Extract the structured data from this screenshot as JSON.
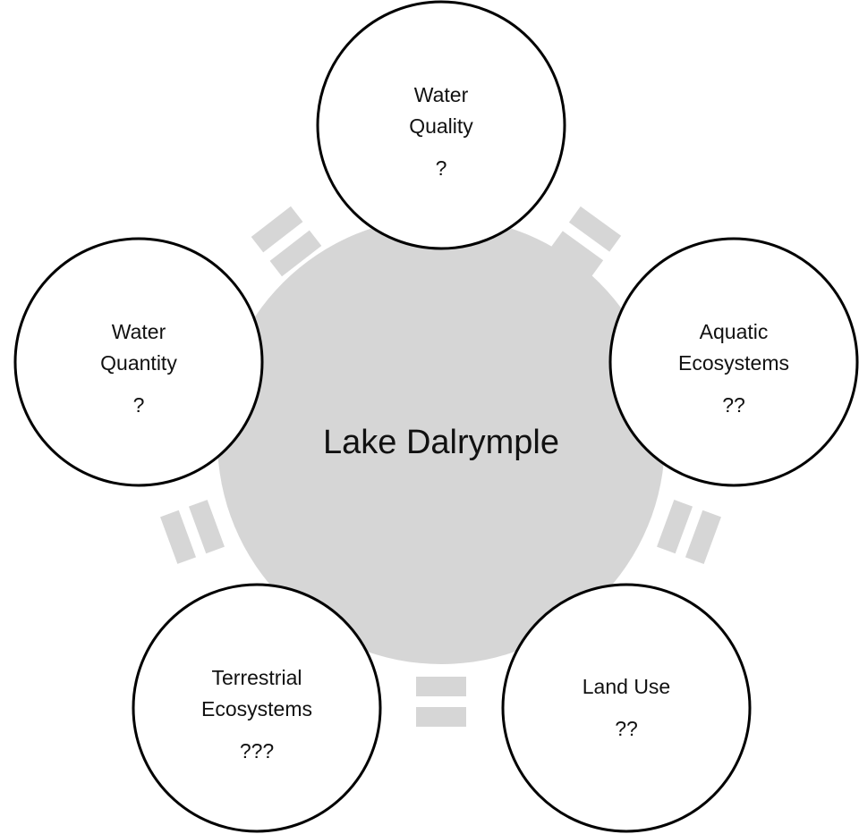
{
  "center": {
    "label": "Lake Dalrymple"
  },
  "nodes": [
    {
      "label_lines": [
        "Water",
        "Quality"
      ],
      "rating": "?"
    },
    {
      "label_lines": [
        "Aquatic",
        "Ecosystems"
      ],
      "rating": "??"
    },
    {
      "label_lines": [
        "Land Use"
      ],
      "rating": "??"
    },
    {
      "label_lines": [
        "Terrestrial",
        "Ecosystems"
      ],
      "rating": "???"
    },
    {
      "label_lines": [
        "Water",
        "Quantity"
      ],
      "rating": "?"
    }
  ]
}
